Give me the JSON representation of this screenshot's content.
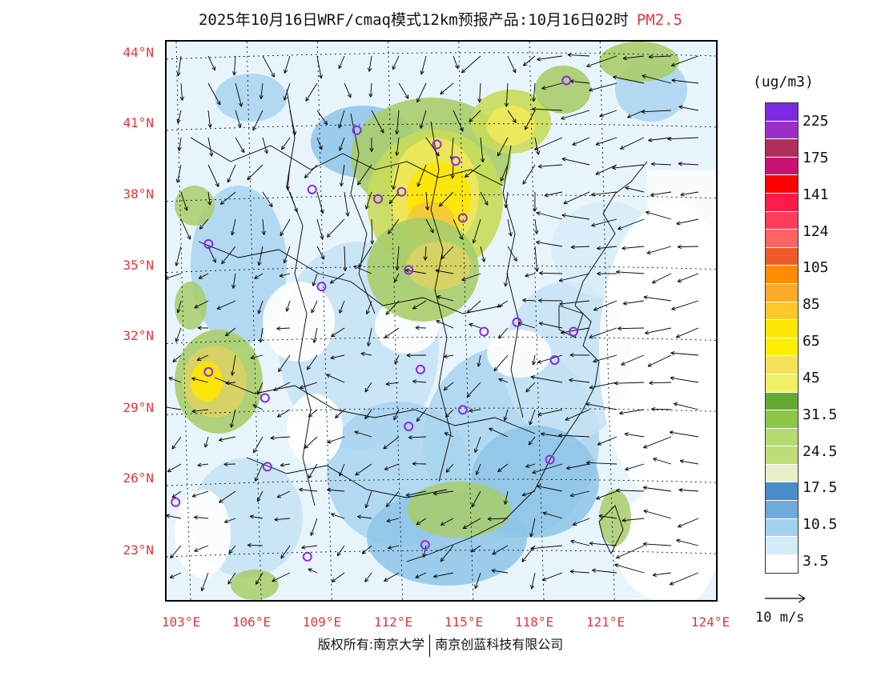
{
  "title": {
    "main": "2025年10月16日WRF/cmaq模式12km预报产品:10月16日02时",
    "pollutant": "PM2.5"
  },
  "axes": {
    "y_labels": [
      "44°N",
      "41°N",
      "38°N",
      "35°N",
      "32°N",
      "29°N",
      "26°N",
      "23°N"
    ],
    "x_labels": [
      "103°E",
      "106°E",
      "109°E",
      "112°E",
      "115°E",
      "118°E",
      "121°E",
      "124°E"
    ],
    "label_color": "#e8343a"
  },
  "colorbar": {
    "unit": "(ug/m3)",
    "labels": [
      "225",
      "175",
      "141",
      "124",
      "105",
      "85",
      "65",
      "45",
      "31.5",
      "24.5",
      "17.5",
      "10.5",
      "3.5"
    ],
    "colors_top_to_bottom": [
      "#7a2be2",
      "#9b30c8",
      "#b0305a",
      "#c81470",
      "#ff0000",
      "#ff1a4a",
      "#ff3c5a",
      "#ff6464",
      "#f05a28",
      "#ff8c00",
      "#ffaa28",
      "#ffc828",
      "#ffe600",
      "#ffee00",
      "#f5e05a",
      "#f0f064",
      "#64aa32",
      "#8cc846",
      "#b4dc6e",
      "#bedc78",
      "#e6f0c8",
      "#4a8cc8",
      "#6eaadc",
      "#a0d2f0",
      "#d2ecfa",
      "#ffffff"
    ]
  },
  "wind_key": {
    "label": "10 m/s"
  },
  "footer": {
    "left": "版权所有:南京大学",
    "right": "南京创蓝科技有限公司"
  },
  "stations": [
    {
      "lon": 119.3,
      "lat": 42.9
    },
    {
      "lon": 110.4,
      "lat": 40.8
    },
    {
      "lon": 113.8,
      "lat": 40.2
    },
    {
      "lon": 114.6,
      "lat": 39.5
    },
    {
      "lon": 108.5,
      "lat": 38.3
    },
    {
      "lon": 112.3,
      "lat": 38.2
    },
    {
      "lon": 111.3,
      "lat": 37.9
    },
    {
      "lon": 114.9,
      "lat": 37.1
    },
    {
      "lon": 104.1,
      "lat": 36.0
    },
    {
      "lon": 112.6,
      "lat": 34.9
    },
    {
      "lon": 108.9,
      "lat": 34.2
    },
    {
      "lon": 117.2,
      "lat": 32.7
    },
    {
      "lon": 115.8,
      "lat": 32.3
    },
    {
      "lon": 119.6,
      "lat": 32.3
    },
    {
      "lon": 118.8,
      "lat": 31.1
    },
    {
      "lon": 104.1,
      "lat": 30.6
    },
    {
      "lon": 113.1,
      "lat": 30.7
    },
    {
      "lon": 106.5,
      "lat": 29.5
    },
    {
      "lon": 114.9,
      "lat": 29.0
    },
    {
      "lon": 112.6,
      "lat": 28.3
    },
    {
      "lon": 118.6,
      "lat": 26.9
    },
    {
      "lon": 106.6,
      "lat": 26.6
    },
    {
      "lon": 102.7,
      "lat": 25.1
    },
    {
      "lon": 113.3,
      "lat": 23.3
    },
    {
      "lon": 108.3,
      "lat": 22.8
    }
  ]
}
